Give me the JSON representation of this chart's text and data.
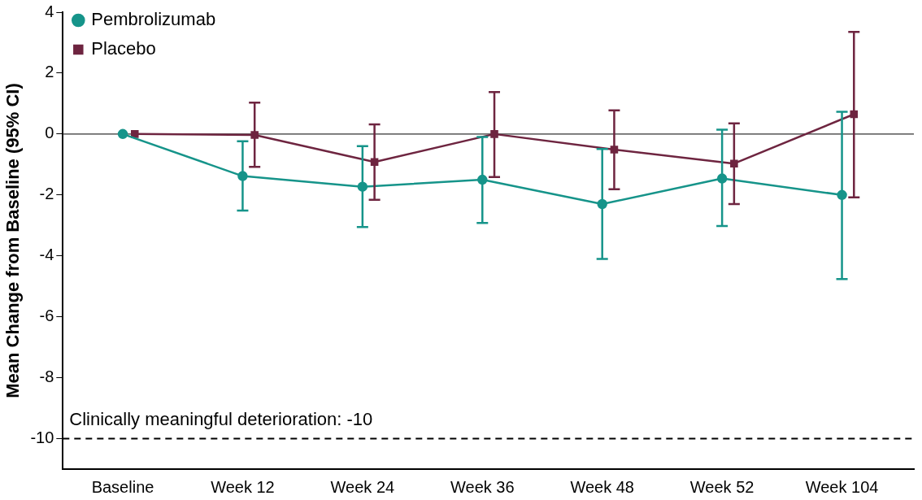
{
  "chart_data": {
    "type": "line",
    "ylabel": "Mean Change from Baseline (95% CI)",
    "categories": [
      "Baseline",
      "Week 12",
      "Week 24",
      "Week 36",
      "Week 48",
      "Week 52",
      "Week 104"
    ],
    "series": [
      {
        "name": "Pembrolizumab",
        "color": "#16948a",
        "marker": "circle",
        "values": [
          0,
          -1.38,
          -1.73,
          -1.5,
          -2.3,
          -1.46,
          -2.0
        ],
        "errors": [
          null,
          [
            -2.51,
            -0.24
          ],
          [
            -3.05,
            -0.4
          ],
          [
            -2.92,
            -0.1
          ],
          [
            -4.1,
            -0.49
          ],
          [
            -3.02,
            0.14
          ],
          [
            -4.76,
            0.73
          ]
        ]
      },
      {
        "name": "Placebo",
        "color": "#6e2540",
        "marker": "square",
        "values": [
          0,
          -0.03,
          -0.92,
          0,
          -0.51,
          -0.97,
          0.65
        ],
        "errors": [
          null,
          [
            -1.08,
            1.03
          ],
          [
            -2.16,
            0.32
          ],
          [
            -1.41,
            1.38
          ],
          [
            -1.81,
            0.78
          ],
          [
            -2.3,
            0.35
          ],
          [
            -2.08,
            3.35
          ]
        ]
      }
    ],
    "ylim": [
      -11,
      4
    ],
    "yticks": [
      -10,
      -8,
      -6,
      -4,
      -2,
      0,
      2,
      4
    ],
    "grid": false,
    "legend": "top left",
    "ref_lines": [
      {
        "axis": "y",
        "value": 0,
        "color": "#333333",
        "line_style": "solid"
      },
      {
        "axis": "y",
        "value": -10,
        "label": "Clinically meaningful deterioration: -10",
        "color": "#000000",
        "line_style": "dashed"
      }
    ]
  }
}
